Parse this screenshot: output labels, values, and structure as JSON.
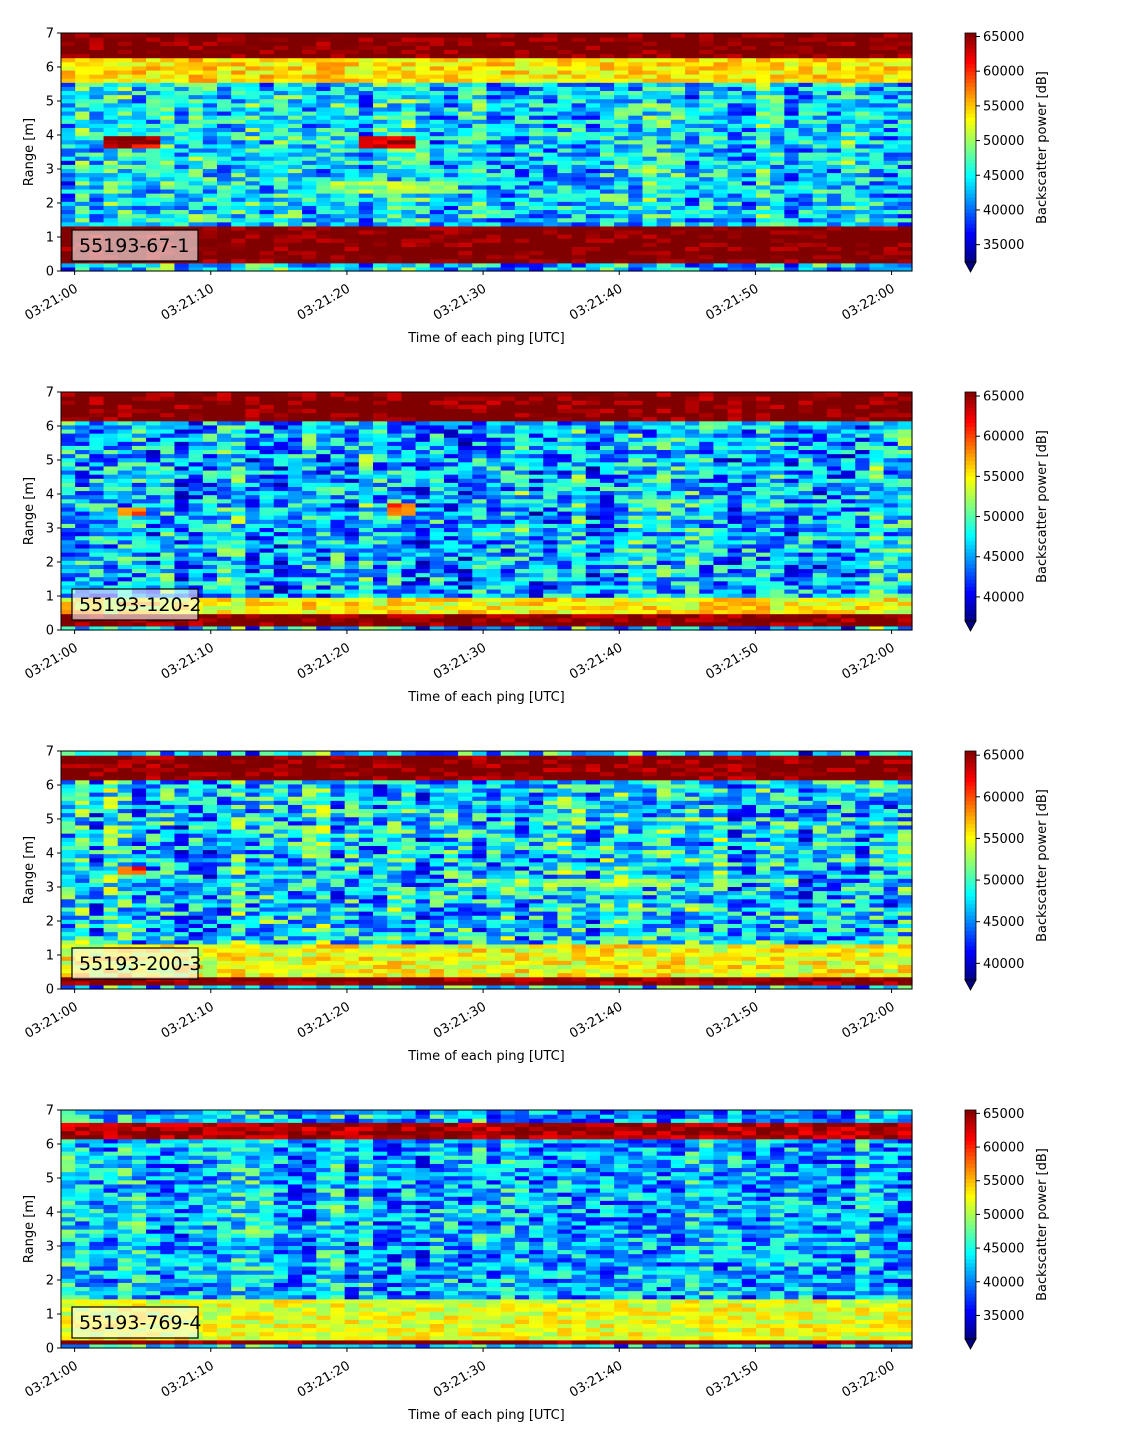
{
  "chart_data": [
    {
      "type": "heatmap",
      "label": "55193-67-1",
      "xlabel": "Time of each ping [UTC]",
      "ylabel": "Range [m]",
      "colorbar_label": "Backscatter power [dB]",
      "x_ticks": [
        "03:21:00",
        "03:21:10",
        "03:21:20",
        "03:21:30",
        "03:21:40",
        "03:21:50",
        "03:22:00"
      ],
      "xlim_seconds": [
        -1,
        61.5
      ],
      "y_ticks": [
        0,
        1,
        2,
        3,
        4,
        5,
        6,
        7
      ],
      "ylim": [
        0,
        7
      ],
      "colorbar_ticks": [
        35000,
        40000,
        45000,
        50000,
        55000,
        60000,
        65000
      ],
      "clim": [
        32500,
        65500
      ],
      "colormap": "jet",
      "extend": "min",
      "features": [
        {
          "desc": "surface reflection",
          "range_m": [
            6.3,
            7.0
          ],
          "level": 66000
        },
        {
          "desc": "surface transition",
          "range_m": [
            5.6,
            6.3
          ],
          "level": 54000
        },
        {
          "desc": "bottom return",
          "range_m": [
            0.2,
            1.3
          ],
          "level": 66000
        },
        {
          "desc": "target track",
          "range_m": [
            3.6,
            4.0
          ],
          "time_s": [
            2.5,
            6.5
          ],
          "level": 63000
        },
        {
          "desc": "target track",
          "range_m": [
            3.6,
            4.0
          ],
          "time_s": [
            20.5,
            25.5
          ],
          "level": 63000
        },
        {
          "desc": "echo layer",
          "range_m": [
            2.3,
            2.6
          ],
          "time_s": [
            18,
            28
          ],
          "level": 50000
        }
      ]
    },
    {
      "type": "heatmap",
      "label": "55193-120-2",
      "xlabel": "Time of each ping [UTC]",
      "ylabel": "Range [m]",
      "colorbar_label": "Backscatter power [dB]",
      "x_ticks": [
        "03:21:00",
        "03:21:10",
        "03:21:20",
        "03:21:30",
        "03:21:40",
        "03:21:50",
        "03:22:00"
      ],
      "xlim_seconds": [
        -1,
        61.5
      ],
      "y_ticks": [
        0,
        1,
        2,
        3,
        4,
        5,
        6,
        7
      ],
      "ylim": [
        0,
        7
      ],
      "colorbar_ticks": [
        40000,
        45000,
        50000,
        55000,
        60000,
        65000
      ],
      "clim": [
        37000,
        65500
      ],
      "colormap": "jet",
      "extend": "min",
      "features": [
        {
          "desc": "surface reflection",
          "range_m": [
            6.2,
            7.0
          ],
          "level": 66000
        },
        {
          "desc": "bottom return",
          "range_m": [
            0.1,
            0.5
          ],
          "level": 66000
        },
        {
          "desc": "near-bottom layer",
          "range_m": [
            0.5,
            1.0
          ],
          "level": 55000
        },
        {
          "desc": "target track",
          "range_m": [
            3.4,
            3.6
          ],
          "time_s": [
            3,
            5.5
          ],
          "level": 60000
        },
        {
          "desc": "target track",
          "range_m": [
            3.4,
            3.7
          ],
          "time_s": [
            22.5,
            25
          ],
          "level": 60000
        }
      ]
    },
    {
      "type": "heatmap",
      "label": "55193-200-3",
      "xlabel": "Time of each ping [UTC]",
      "ylabel": "Range [m]",
      "colorbar_label": "Backscatter power [dB]",
      "x_ticks": [
        "03:21:00",
        "03:21:10",
        "03:21:20",
        "03:21:30",
        "03:21:40",
        "03:21:50",
        "03:22:00"
      ],
      "xlim_seconds": [
        -1,
        61.5
      ],
      "y_ticks": [
        0,
        1,
        2,
        3,
        4,
        5,
        6,
        7
      ],
      "ylim": [
        0,
        7
      ],
      "colorbar_ticks": [
        40000,
        45000,
        50000,
        55000,
        60000,
        65000
      ],
      "clim": [
        38000,
        65500
      ],
      "colormap": "jet",
      "extend": "min",
      "features": [
        {
          "desc": "surface reflection",
          "range_m": [
            6.1,
            6.9
          ],
          "level": 66000
        },
        {
          "desc": "bottom return",
          "range_m": [
            0.1,
            0.4
          ],
          "level": 66000
        },
        {
          "desc": "near-bottom layer",
          "range_m": [
            0.4,
            1.3
          ],
          "level": 55000
        },
        {
          "desc": "target track",
          "range_m": [
            3.4,
            3.6
          ],
          "time_s": [
            3.5,
            5.5
          ],
          "level": 60000
        },
        {
          "desc": "echo layer",
          "range_m": [
            3.0,
            3.2
          ],
          "time_s": [
            28,
            45
          ],
          "level": 52000
        }
      ]
    },
    {
      "type": "heatmap",
      "label": "55193-769-4",
      "xlabel": "Time of each ping [UTC]",
      "ylabel": "Range [m]",
      "colorbar_label": "Backscatter power [dB]",
      "x_ticks": [
        "03:21:00",
        "03:21:10",
        "03:21:20",
        "03:21:30",
        "03:21:40",
        "03:21:50",
        "03:22:00"
      ],
      "xlim_seconds": [
        -1,
        61.5
      ],
      "y_ticks": [
        0,
        1,
        2,
        3,
        4,
        5,
        6,
        7
      ],
      "ylim": [
        0,
        7
      ],
      "colorbar_ticks": [
        35000,
        40000,
        45000,
        50000,
        55000,
        60000,
        65000
      ],
      "clim": [
        31500,
        65500
      ],
      "colormap": "jet",
      "extend": "min",
      "features": [
        {
          "desc": "surface reflection",
          "range_m": [
            6.1,
            6.6
          ],
          "level": 64000
        },
        {
          "desc": "bottom return",
          "range_m": [
            0.15,
            0.3
          ],
          "level": 66000
        },
        {
          "desc": "near-bottom layer",
          "range_m": [
            0.3,
            1.5
          ],
          "level": 52000
        }
      ]
    }
  ]
}
